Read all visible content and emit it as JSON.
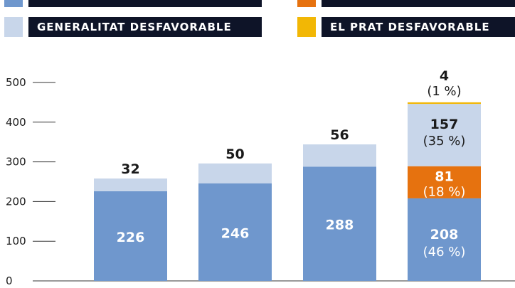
{
  "legend": [
    {
      "label": "",
      "color": "#6f97cd"
    },
    {
      "label": "",
      "color": "#e6720f"
    },
    {
      "label": "GENERALITAT DESFAVORABLE",
      "color": "#c8d6ea"
    },
    {
      "label": "EL PRAT DESFAVORABLE",
      "color": "#f2b705"
    }
  ],
  "chart_data": {
    "type": "bar",
    "stacked": true,
    "ylim": [
      0,
      500
    ],
    "yticks": [
      0,
      100,
      200,
      300,
      400,
      500
    ],
    "grid": false,
    "categories": [
      "",
      "",
      "",
      ""
    ],
    "series": [
      {
        "name": "",
        "color": "#6f97cd",
        "values": [
          226,
          246,
          288,
          208
        ],
        "labels": [
          "226",
          "246",
          "288",
          "208"
        ],
        "pcts": [
          "",
          "",
          "",
          "(46 %)"
        ]
      },
      {
        "name": "",
        "color": "#e6720f",
        "values": [
          0,
          0,
          0,
          81
        ],
        "labels": [
          "",
          "",
          "",
          "81"
        ],
        "pcts": [
          "",
          "",
          "",
          "(18 %)"
        ]
      },
      {
        "name": "GENERALITAT DESFAVORABLE",
        "color": "#c8d6ea",
        "values": [
          32,
          50,
          56,
          157
        ],
        "labels": [
          "32",
          "50",
          "56",
          "157"
        ],
        "pcts": [
          "",
          "",
          "",
          "(35 %)"
        ]
      },
      {
        "name": "EL PRAT DESFAVORABLE",
        "color": "#f2b705",
        "values": [
          0,
          0,
          0,
          4
        ],
        "labels": [
          "",
          "",
          "",
          "4"
        ],
        "pcts": [
          "",
          "",
          "",
          "(1 %)"
        ]
      }
    ]
  }
}
